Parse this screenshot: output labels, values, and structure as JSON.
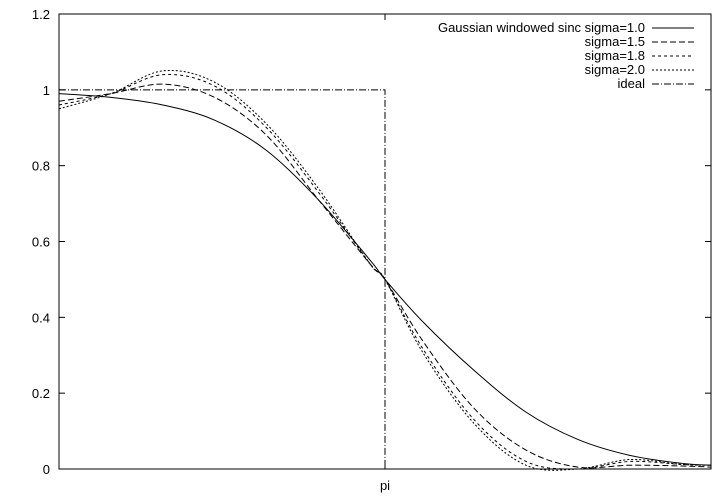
{
  "chart_data": {
    "type": "line",
    "title": "",
    "xlabel": "",
    "ylabel": "",
    "xlim": [
      0,
      6.2832
    ],
    "ylim": [
      0,
      1.2
    ],
    "grid": false,
    "legend_position": "top-right",
    "x_ticks": [
      {
        "value": 3.1416,
        "label": "pi"
      }
    ],
    "y_ticks": [
      {
        "value": 0,
        "label": "0"
      },
      {
        "value": 0.2,
        "label": "0.2"
      },
      {
        "value": 0.4,
        "label": "0.4"
      },
      {
        "value": 0.6,
        "label": "0.6"
      },
      {
        "value": 0.8,
        "label": "0.8"
      },
      {
        "value": 1.0,
        "label": "1"
      },
      {
        "value": 1.2,
        "label": "1.2"
      }
    ],
    "series": [
      {
        "name": "Gaussian windowed sinc sigma=1.0",
        "dash": "",
        "x": [
          0.0,
          0.5,
          1.0,
          1.5,
          2.0,
          2.5,
          3.0,
          3.1416,
          3.5,
          4.0,
          4.5,
          5.0,
          5.5,
          6.0,
          6.2832
        ],
        "y": [
          0.99,
          0.98,
          0.96,
          0.92,
          0.84,
          0.71,
          0.55,
          0.5,
          0.39,
          0.26,
          0.15,
          0.078,
          0.036,
          0.015,
          0.01
        ]
      },
      {
        "name": "sigma=1.5",
        "dash": "6,3",
        "x": [
          0.0,
          0.5,
          1.0,
          1.5,
          2.0,
          2.5,
          3.0,
          3.1416,
          3.5,
          4.0,
          4.5,
          5.0,
          5.5,
          6.0,
          6.2832
        ],
        "y": [
          0.97,
          0.99,
          1.015,
          0.98,
          0.88,
          0.71,
          0.54,
          0.5,
          0.34,
          0.16,
          0.05,
          0.005,
          0.01,
          0.008,
          0.005
        ]
      },
      {
        "name": "sigma=1.8",
        "dash": "3,3",
        "x": [
          0.0,
          0.5,
          1.0,
          1.5,
          2.0,
          2.5,
          3.0,
          3.1416,
          3.5,
          4.0,
          4.5,
          5.0,
          5.5,
          6.0,
          6.2832
        ],
        "y": [
          0.96,
          0.99,
          1.04,
          1.01,
          0.9,
          0.73,
          0.54,
          0.5,
          0.32,
          0.13,
          0.02,
          0.0,
          0.02,
          0.012,
          0.01
        ]
      },
      {
        "name": "sigma=2.0",
        "dash": "2,2",
        "x": [
          0.0,
          0.5,
          1.0,
          1.5,
          2.0,
          2.5,
          3.0,
          3.1416,
          3.5,
          4.0,
          4.5,
          5.0,
          5.5,
          6.0,
          6.2832
        ],
        "y": [
          0.95,
          0.99,
          1.05,
          1.02,
          0.91,
          0.74,
          0.54,
          0.5,
          0.31,
          0.12,
          0.01,
          0.0,
          0.025,
          0.012,
          0.01
        ]
      },
      {
        "name": "ideal",
        "dash": "7,2,1,2",
        "x": [
          0.0,
          3.1416,
          3.1416,
          6.2832
        ],
        "y": [
          1.0,
          1.0,
          0.0,
          0.0
        ]
      }
    ]
  }
}
